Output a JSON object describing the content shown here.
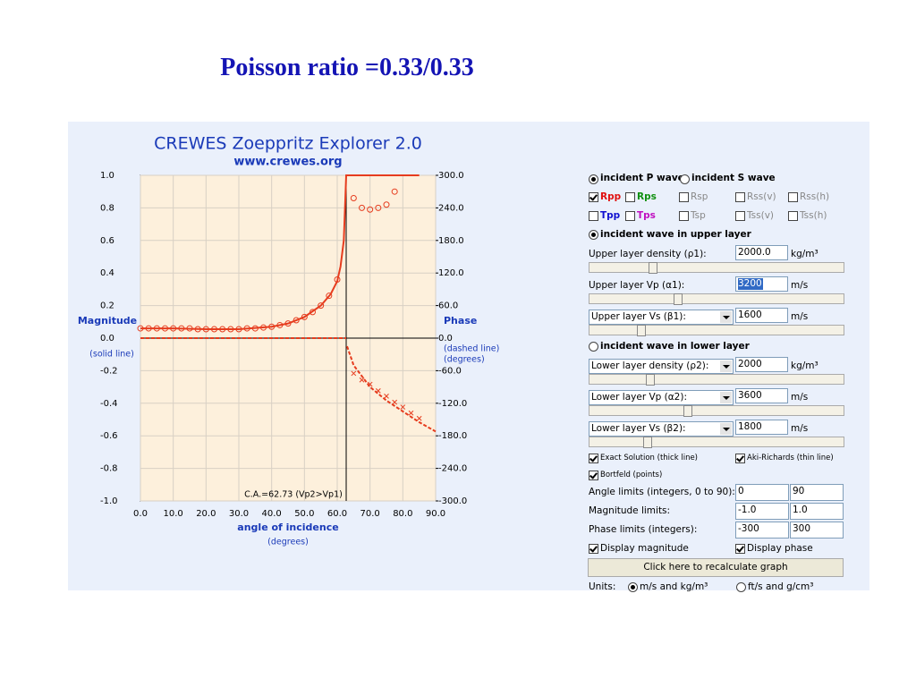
{
  "slide_title": "Poisson ratio =0.33/0.33",
  "applet": {
    "title": "CREWES Zoeppritz Explorer 2.0",
    "url": "www.crewes.org"
  },
  "chart_data": {
    "type": "line",
    "xlabel": "angle of incidence",
    "xlabel_sub": "(degrees)",
    "ylabel": "Magnitude",
    "ylabel_sub": "(solid line)",
    "y2label": "Phase",
    "y2label_sub": [
      "(dashed line)",
      "(degrees)"
    ],
    "annotation": "C.A.=62.73 (Vp2>Vp1)",
    "critical_angle": 62.73,
    "xlim": [
      0,
      90
    ],
    "ylim": [
      -1,
      1
    ],
    "y2lim": [
      -300,
      300
    ],
    "grid": true,
    "xticks": [
      {
        "value": 0,
        "label": "0.0"
      },
      {
        "value": 10,
        "label": "10.0"
      },
      {
        "value": 20,
        "label": "20.0"
      },
      {
        "value": 30,
        "label": "30.0"
      },
      {
        "value": 40,
        "label": "40.0"
      },
      {
        "value": 50,
        "label": "50.0"
      },
      {
        "value": 60,
        "label": "60.0"
      },
      {
        "value": 70,
        "label": "70.0"
      },
      {
        "value": 80,
        "label": "80.0"
      },
      {
        "value": 90,
        "label": "90.0"
      }
    ],
    "yticks": [
      {
        "value": 1,
        "label": "1.0"
      },
      0.8,
      0.6,
      0.4,
      0.2,
      {
        "value": 0,
        "label": "0.0"
      },
      -0.2,
      -0.4,
      -0.6,
      -0.8,
      {
        "value": -1,
        "label": "-1.0"
      }
    ],
    "y2ticks": [
      {
        "value": 300,
        "label": "300.0"
      },
      {
        "value": 240,
        "label": "240.0"
      },
      {
        "value": 180,
        "label": "180.0"
      },
      {
        "value": 120,
        "label": "120.0"
      },
      {
        "value": 60,
        "label": "60.0"
      },
      {
        "value": 0,
        "label": "0.0"
      },
      {
        "value": -60,
        "label": "-60.0"
      },
      {
        "value": -120,
        "label": "-120.0"
      },
      {
        "value": -180,
        "label": "-180.0"
      },
      {
        "value": -240,
        "label": "-240.0"
      },
      {
        "value": -300,
        "label": "-300.0"
      }
    ],
    "series": [
      {
        "style": "solid",
        "color": "#e63c1e",
        "axis": "y",
        "x": [
          0,
          10,
          20,
          30,
          40,
          45,
          50,
          55,
          58,
          60,
          61,
          62,
          62.73,
          70,
          80,
          85
        ],
        "values": [
          0.06,
          0.06,
          0.055,
          0.055,
          0.07,
          0.09,
          0.13,
          0.2,
          0.27,
          0.35,
          0.44,
          0.6,
          1.0,
          1.0,
          1.0,
          1.0
        ]
      },
      {
        "style": "dashed",
        "color": "#e63c1e",
        "axis": "y2",
        "x": [
          0,
          30,
          62.73,
          null,
          63,
          65,
          70,
          75,
          80,
          85,
          90
        ],
        "values": [
          0,
          0,
          0,
          null,
          -15,
          -50,
          -90,
          -115,
          -135,
          -155,
          -172
        ]
      },
      {
        "style": "circle",
        "color": "#e63c1e",
        "axis": "y",
        "x": [
          0,
          2.5,
          5,
          7.5,
          10,
          12.5,
          15,
          17.5,
          20,
          22.5,
          25,
          27.5,
          30,
          32.5,
          35,
          37.5,
          40,
          42.5,
          45,
          47.5,
          50,
          52.5,
          55,
          57.5,
          60,
          65,
          67.5,
          70,
          72.5,
          75,
          77.5
        ],
        "values": [
          0.06,
          0.06,
          0.06,
          0.06,
          0.06,
          0.06,
          0.06,
          0.055,
          0.055,
          0.055,
          0.055,
          0.055,
          0.055,
          0.06,
          0.06,
          0.065,
          0.07,
          0.08,
          0.09,
          0.11,
          0.13,
          0.16,
          0.2,
          0.26,
          0.36,
          0.86,
          0.8,
          0.79,
          0.8,
          0.82,
          0.9
        ]
      },
      {
        "style": "cross",
        "color": "#e63c1e",
        "axis": "y2",
        "x": [
          65,
          67.5,
          70,
          72.5,
          75,
          77.5,
          80,
          82.5,
          85
        ],
        "values": [
          -65,
          -77,
          -85,
          -97,
          -107,
          -118,
          -127,
          -138,
          -148
        ]
      }
    ]
  },
  "controls": {
    "incident": [
      "incident P wave",
      "incident S wave"
    ],
    "reflect": [
      "Rpp",
      "Rps",
      "Rsp",
      "Rss(v)",
      "Rss(h)"
    ],
    "transmit": [
      "Tpp",
      "Tps",
      "Tsp",
      "Tss(v)",
      "Tss(h)"
    ],
    "upper_layer": "incident wave in upper layer",
    "lower_layer": "incident wave in lower layer",
    "params": [
      {
        "label": "Upper layer density (ρ1):",
        "value": "2000.0",
        "unit": "kg/m³"
      },
      {
        "label": "Upper layer Vp (α1):",
        "value": "3200",
        "unit": "m/s"
      },
      {
        "label": "Upper layer Vs (β1):",
        "value": "1600",
        "unit": "m/s"
      },
      {
        "label": "Lower layer density (ρ2):",
        "value": "2000",
        "unit": "kg/m³"
      },
      {
        "label": "Lower layer Vp (α2):",
        "value": "3600",
        "unit": "m/s"
      },
      {
        "label": "Lower layer Vs (β2):",
        "value": "1800",
        "unit": "m/s"
      }
    ],
    "options": [
      "Exact Solution (thick line)",
      "Aki-Richards (thin line)",
      "Bortfeld (points)"
    ],
    "limits": [
      {
        "label": "Angle limits (integers, 0 to 90):",
        "min": "0",
        "max": "90"
      },
      {
        "label": "Magnitude limits:",
        "min": "-1.0",
        "max": "1.0"
      },
      {
        "label": "Phase limits (integers):",
        "min": "-300",
        "max": "300"
      }
    ],
    "display": [
      "Display magnitude",
      "Display phase"
    ],
    "button": "Click here to recalculate graph",
    "units_label": "Units:",
    "units": [
      "m/s and kg/m³",
      "ft/s and g/cm³"
    ]
  }
}
